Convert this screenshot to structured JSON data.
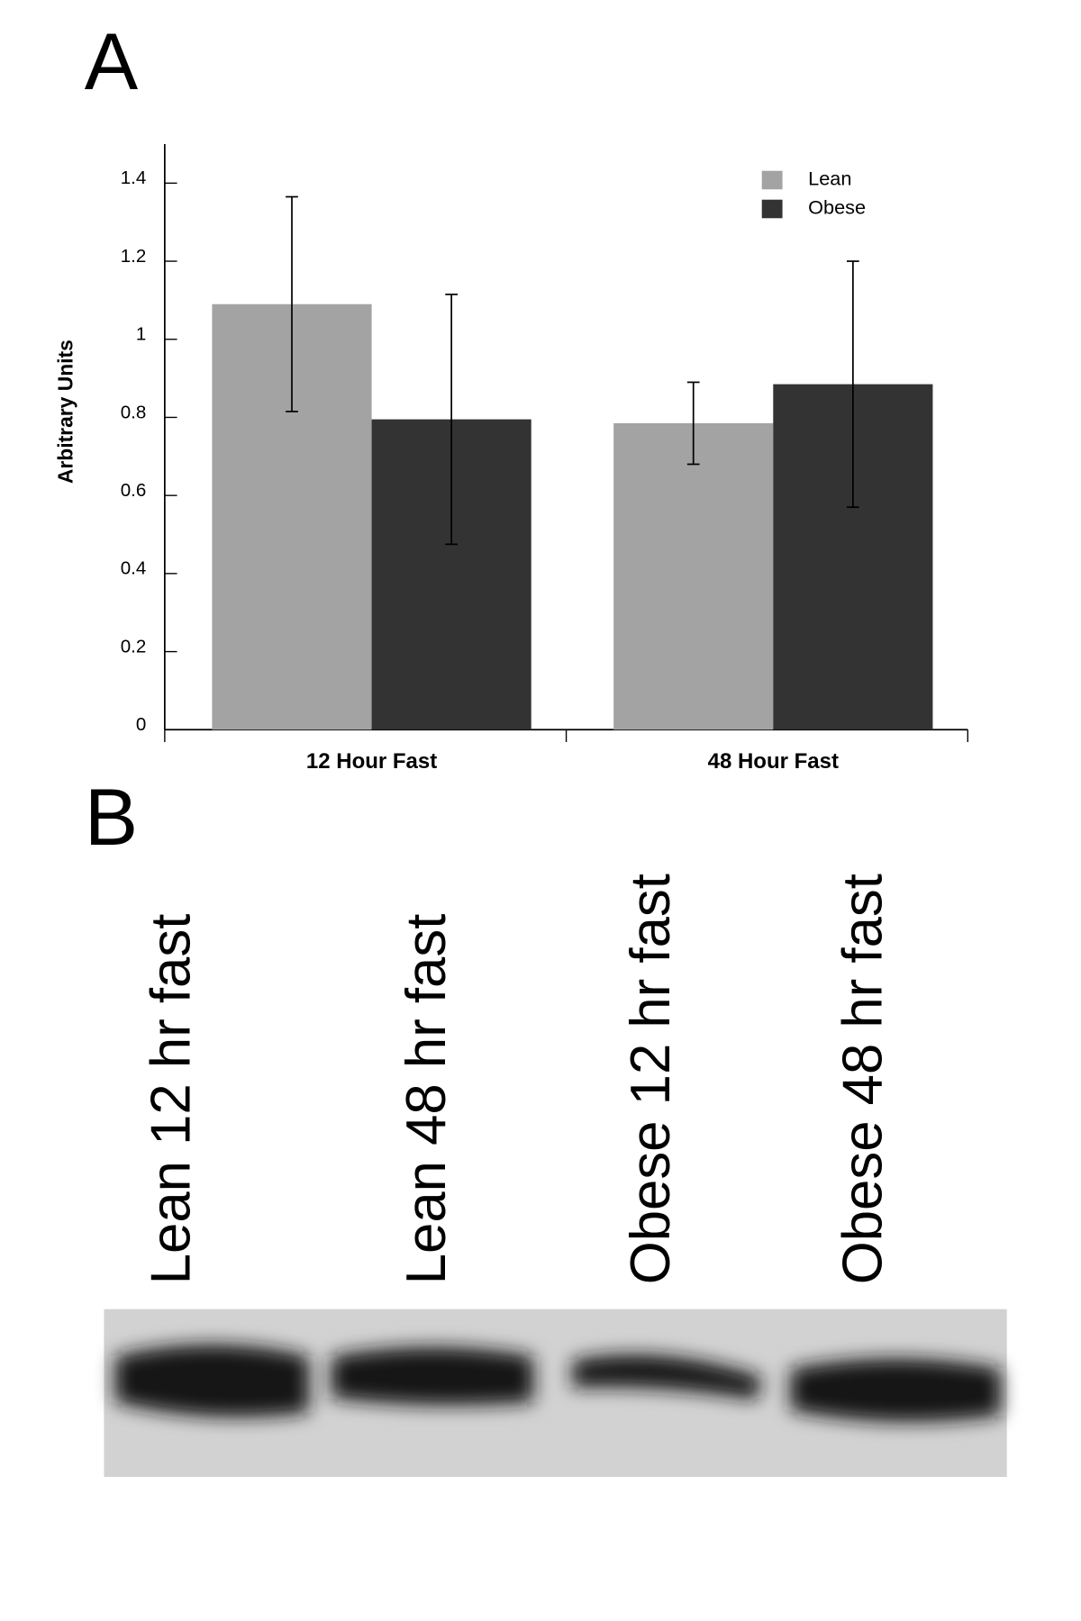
{
  "panel_labels": {
    "a": "A",
    "b": "B"
  },
  "chart_data": {
    "type": "bar",
    "y_label": "Arbitrary Units",
    "categories": [
      "12 Hour Fast",
      "48 Hour Fast"
    ],
    "series": [
      {
        "name": "Lean",
        "color": "#a3a3a3",
        "values": [
          1.09,
          0.785
        ],
        "errors": [
          0.275,
          0.105
        ]
      },
      {
        "name": "Obese",
        "color": "#333333",
        "values": [
          0.795,
          0.885
        ],
        "errors": [
          0.32,
          0.315
        ]
      }
    ],
    "ylim": [
      0,
      1.5
    ],
    "yticks": [
      0,
      0.2,
      0.4,
      0.6,
      0.8,
      1,
      1.2,
      1.4
    ],
    "legend": "upper right"
  },
  "blot": {
    "lanes": [
      "Lean 12 hr fast",
      "Lean 48 hr fast",
      "Obese 12 hr fast",
      "Obese 48 hr fast"
    ]
  }
}
